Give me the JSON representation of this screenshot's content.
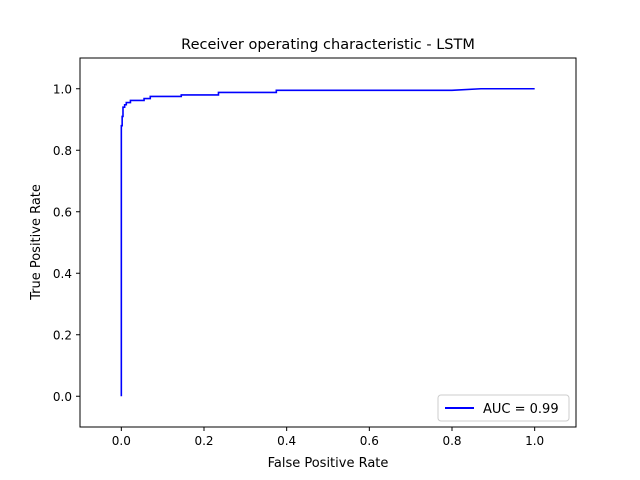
{
  "chart_data": {
    "type": "line",
    "title": "Receiver operating characteristic - LSTM",
    "xlabel": "False Positive Rate",
    "ylabel": "True Positive Rate",
    "xlim": [
      -0.1,
      1.1
    ],
    "ylim": [
      -0.1,
      1.1
    ],
    "xticks": [
      "0.0",
      "0.2",
      "0.4",
      "0.6",
      "0.8",
      "1.0"
    ],
    "yticks": [
      "0.0",
      "0.2",
      "0.4",
      "0.6",
      "0.8",
      "1.0"
    ],
    "grid": false,
    "legend_position": "lower-right",
    "series": [
      {
        "name": "AUC = 0.99",
        "color": "#0000ff",
        "x": [
          0,
          0,
          0.002,
          0.002,
          0.004,
          0.004,
          0.008,
          0.008,
          0.012,
          0.012,
          0.022,
          0.022,
          0.055,
          0.055,
          0.07,
          0.07,
          0.145,
          0.145,
          0.235,
          0.235,
          0.375,
          0.375,
          0.8,
          0.87,
          1.0
        ],
        "y": [
          0,
          0.88,
          0.88,
          0.91,
          0.91,
          0.94,
          0.94,
          0.948,
          0.948,
          0.955,
          0.955,
          0.962,
          0.962,
          0.968,
          0.968,
          0.975,
          0.975,
          0.98,
          0.98,
          0.988,
          0.988,
          0.995,
          0.995,
          1.0,
          1.0
        ]
      }
    ]
  }
}
